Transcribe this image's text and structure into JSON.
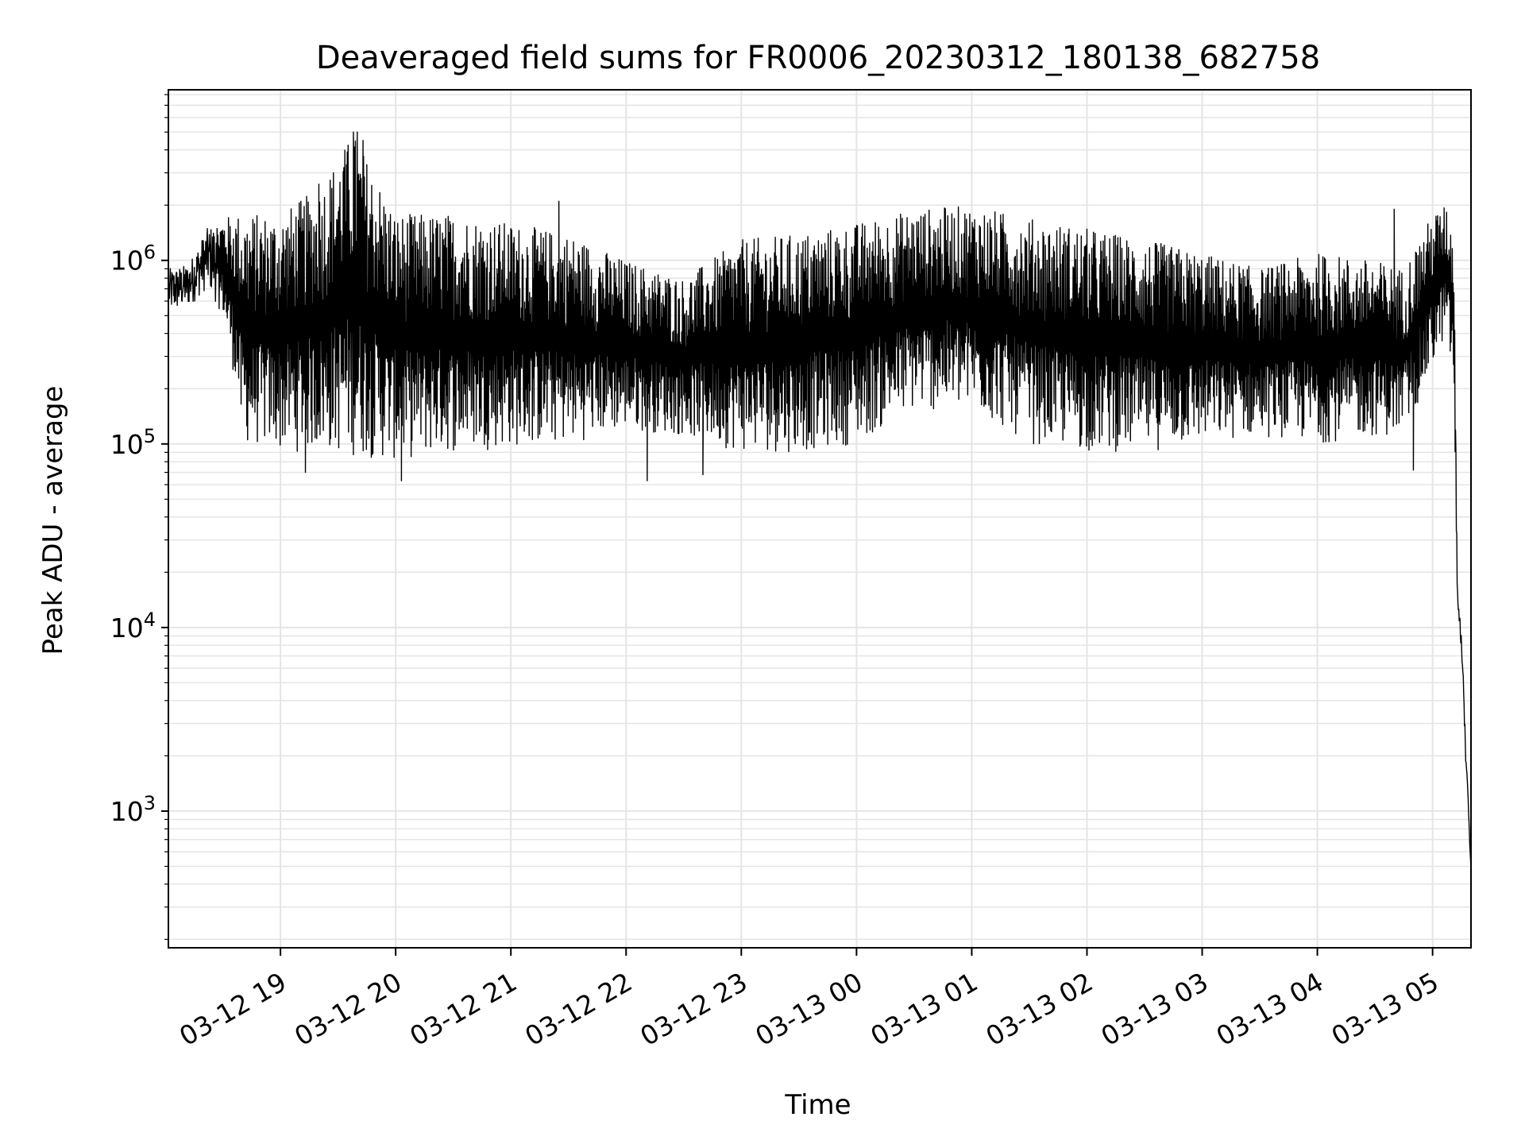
{
  "chart_data": {
    "type": "line",
    "title": "Deaveraged field sums for FR0006_20230312_180138_682758",
    "xlabel": "Time",
    "ylabel": "Peak ADU - average",
    "y_scale": "log",
    "ylim": [
      180,
      8500000
    ],
    "xlim": [
      "2023-03-12 18:01:38",
      "2023-03-13 05:20:00"
    ],
    "x_tick_labels": [
      "03-12 19",
      "03-12 20",
      "03-12 21",
      "03-12 22",
      "03-12 23",
      "03-13 00",
      "03-13 01",
      "03-13 02",
      "03-13 03",
      "03-13 04",
      "03-13 05"
    ],
    "x_ticks": [
      "2023-03-12 19:00",
      "2023-03-12 20:00",
      "2023-03-12 21:00",
      "2023-03-12 22:00",
      "2023-03-12 23:00",
      "2023-03-13 00:00",
      "2023-03-13 01:00",
      "2023-03-13 02:00",
      "2023-03-13 03:00",
      "2023-03-13 04:00",
      "2023-03-13 05:00"
    ],
    "y_ticks": [
      1000,
      10000,
      100000,
      1000000
    ],
    "y_tick_labels": [
      {
        "base": "10",
        "exp": "3"
      },
      {
        "base": "10",
        "exp": "4"
      },
      {
        "base": "10",
        "exp": "5"
      },
      {
        "base": "10",
        "exp": "6"
      }
    ],
    "grid": "both, major and minor",
    "line_color": "#000000",
    "grid_color": "#e5e5e5",
    "envelope": {
      "x": [
        "2023-03-12 18:02",
        "2023-03-12 18:12",
        "2023-03-12 18:22",
        "2023-03-12 18:30",
        "2023-03-12 18:37",
        "2023-03-12 18:40",
        "2023-03-12 19:00",
        "2023-03-12 19:20",
        "2023-03-12 19:38",
        "2023-03-12 20:00",
        "2023-03-12 20:30",
        "2023-03-12 21:00",
        "2023-03-12 21:30",
        "2023-03-12 22:00",
        "2023-03-12 22:30",
        "2023-03-12 23:00",
        "2023-03-12 23:30",
        "2023-03-13 00:00",
        "2023-03-13 00:30",
        "2023-03-13 01:00",
        "2023-03-13 01:30",
        "2023-03-13 02:00",
        "2023-03-13 02:30",
        "2023-03-13 03:00",
        "2023-03-13 03:30",
        "2023-03-13 04:00",
        "2023-03-13 04:30",
        "2023-03-13 04:45",
        "2023-03-13 05:00",
        "2023-03-13 05:07",
        "2023-03-13 05:11",
        "2023-03-13 05:13",
        "2023-03-13 05:14",
        "2023-03-13 05:16",
        "2023-03-13 05:17",
        "2023-03-13 05:18",
        "2023-03-13 05:19",
        "2023-03-13 05:20"
      ],
      "low": [
        500000,
        550000,
        700000,
        500000,
        200000,
        100000,
        90000,
        90000,
        85000,
        80000,
        90000,
        95000,
        100000,
        120000,
        110000,
        90000,
        90000,
        100000,
        150000,
        150000,
        100000,
        90000,
        90000,
        100000,
        110000,
        100000,
        110000,
        110000,
        250000,
        400000,
        200000,
        12000,
        10000,
        5000,
        2000,
        1500,
        800,
        450
      ],
      "high": [
        900000,
        950000,
        1500000,
        1700000,
        1800000,
        1800000,
        1800000,
        2500000,
        5000000,
        1800000,
        1800000,
        1600000,
        1400000,
        1000000,
        800000,
        1300000,
        1400000,
        1600000,
        1900000,
        2000000,
        1700000,
        1500000,
        1300000,
        1100000,
        900000,
        1100000,
        1000000,
        900000,
        1800000,
        2000000,
        1500000,
        16000,
        13000,
        6000,
        2600,
        1600,
        900,
        480
      ]
    },
    "spikes": [
      {
        "x": "2023-03-12 19:20",
        "y": 2600000
      },
      {
        "x": "2023-03-12 19:33",
        "y": 3200000
      },
      {
        "x": "2023-03-12 19:38",
        "y": 5000000
      },
      {
        "x": "2023-03-12 19:40",
        "y": 5000000
      },
      {
        "x": "2023-03-12 19:43",
        "y": 4500000
      },
      {
        "x": "2023-03-12 21:25",
        "y": 2100000
      },
      {
        "x": "2023-03-13 04:40",
        "y": 1900000
      }
    ],
    "dips": [
      {
        "x": "2023-03-12 19:13",
        "y": 70000
      },
      {
        "x": "2023-03-12 20:03",
        "y": 63000
      },
      {
        "x": "2023-03-12 22:11",
        "y": 63000
      },
      {
        "x": "2023-03-12 22:40",
        "y": 68000
      },
      {
        "x": "2023-03-13 04:50",
        "y": 72000
      }
    ]
  }
}
